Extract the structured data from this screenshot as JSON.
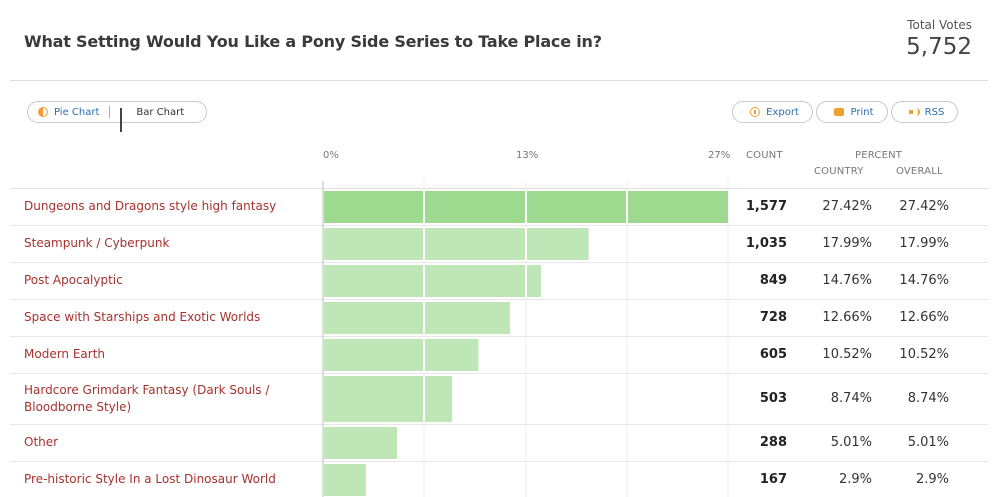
{
  "header": {
    "title": "What Setting Would You Like a Pony Side Series to Take Place in?",
    "total_votes_label": "Total Votes",
    "total_votes_value": "5,752"
  },
  "toolbar": {
    "pie_label": "Pie Chart",
    "bar_label": "Bar Chart",
    "export_label": "Export",
    "print_label": "Print",
    "rss_label": "RSS"
  },
  "columns": {
    "count": "COUNT",
    "percent": "PERCENT",
    "country": "COUNTRY",
    "overall": "OVERALL"
  },
  "colors": {
    "bar": "#bfe6b7",
    "bar_top": "#9dd98f",
    "label": "#a6322e"
  },
  "chart_data": {
    "type": "bar",
    "orientation": "horizontal",
    "title": "What Setting Would You Like a Pony Side Series to Take Place in?",
    "x_ticks": [
      "0%",
      "13%",
      "27%"
    ],
    "xlim": [
      0,
      27.42
    ],
    "categories": [
      "Dungeons and Dragons style high fantasy",
      "Steampunk / Cyberpunk",
      "Post Apocalyptic",
      "Space with Starships and Exotic Worlds",
      "Modern Earth",
      "Hardcore Grimdark Fantasy (Dark Souls / Bloodborne Style)",
      "Other",
      "Pre-historic Style In a Lost Dinosaur World"
    ],
    "counts": [
      "1,577",
      "1,035",
      "849",
      "728",
      "605",
      "503",
      "288",
      "167"
    ],
    "percent_country": [
      "27.42%",
      "17.99%",
      "14.76%",
      "12.66%",
      "10.52%",
      "8.74%",
      "5.01%",
      "2.9%"
    ],
    "percent_overall": [
      "27.42%",
      "17.99%",
      "14.76%",
      "12.66%",
      "10.52%",
      "8.74%",
      "5.01%",
      "2.9%"
    ],
    "values": [
      27.42,
      17.99,
      14.76,
      12.66,
      10.52,
      8.74,
      5.01,
      2.9
    ]
  }
}
